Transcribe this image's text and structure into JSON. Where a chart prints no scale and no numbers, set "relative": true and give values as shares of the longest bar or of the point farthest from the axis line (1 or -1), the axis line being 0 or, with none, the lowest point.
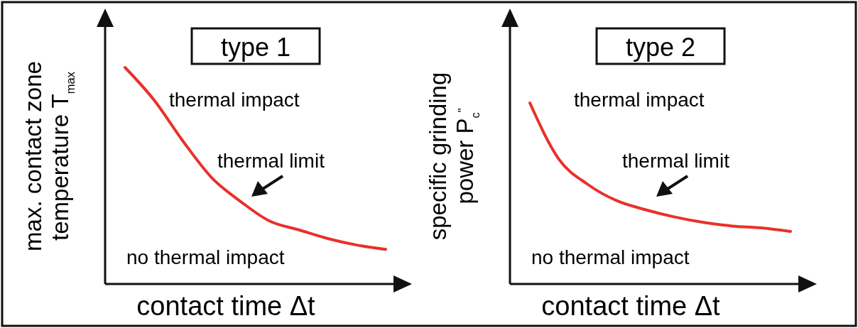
{
  "chart_data": [
    {
      "type": "line",
      "title": "type 1",
      "xlabel": "contact time Δt",
      "ylabel": "max. contact zone temperature T$_{max}$",
      "relative": true,
      "categories": [
        null,
        null,
        null,
        null,
        null,
        null,
        null,
        null,
        null,
        null
      ],
      "series": [
        {
          "color": "#e8312a",
          "values": [
            1,
            0.85,
            0.66,
            0.49,
            0.38,
            0.29,
            0.25,
            0.21,
            0.18,
            0.16
          ]
        }
      ],
      "annotations": [
        "thermal impact",
        "thermal limit",
        "no thermal impact"
      ]
    },
    {
      "type": "line",
      "title": "type 2",
      "xlabel": "contact time Δt",
      "ylabel": "specific grinding power P$_{c}$$^{\"}$",
      "relative": true,
      "categories": [
        null,
        null,
        null,
        null,
        null,
        null,
        null,
        null,
        null,
        null
      ],
      "series": [
        {
          "color": "#e8312a",
          "values": [
            1,
            0.69,
            0.55,
            0.46,
            0.41,
            0.37,
            0.34,
            0.32,
            0.31,
            0.29
          ]
        }
      ],
      "annotations": [
        "thermal impact",
        "thermal limit",
        "no thermal impact"
      ]
    }
  ]
}
